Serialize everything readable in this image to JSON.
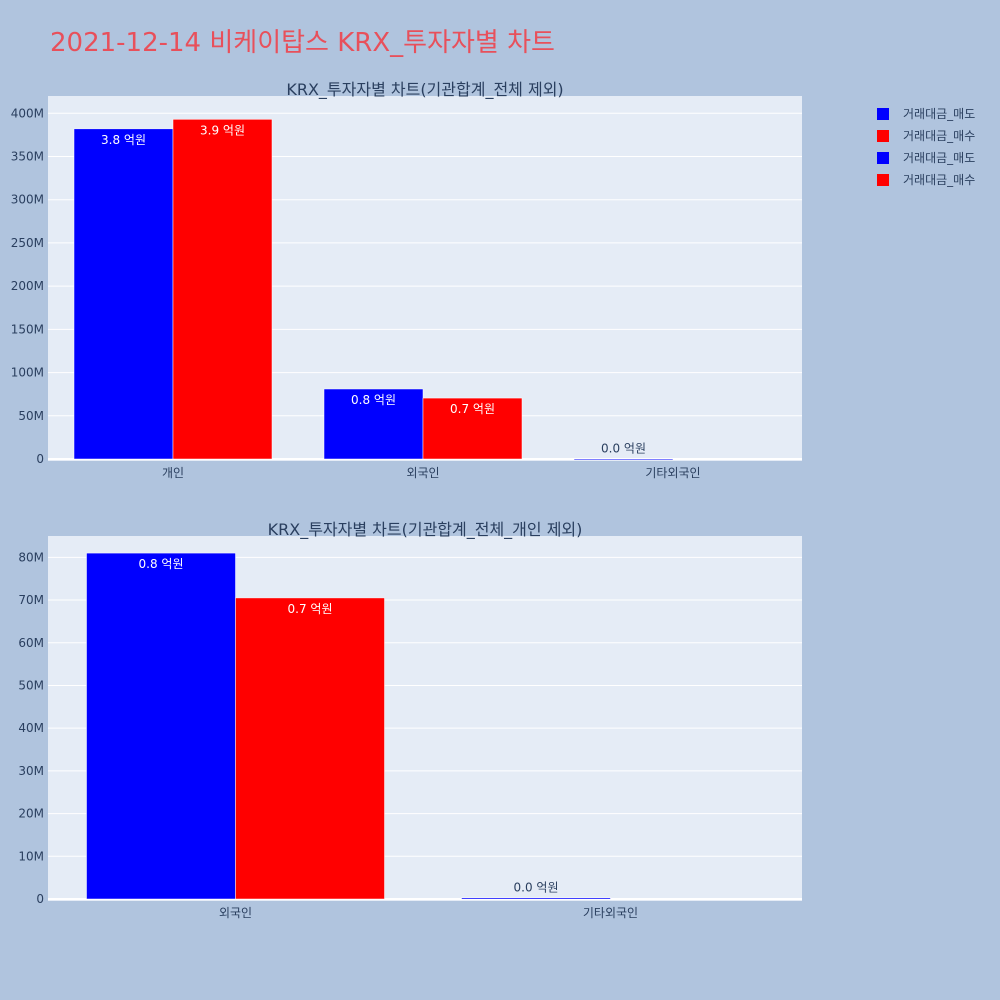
{
  "page_title": "2021-12-14 비케이탑스 KRX_투자자별 차트",
  "colors": {
    "sell": "#0000ff",
    "buy": "#ff0000",
    "plot_bg": "#e5ecf6",
    "page_bg": "#b0c4de"
  },
  "legend": [
    "거래대금_매도",
    "거래대금_매수",
    "거래대금_매도",
    "거래대금_매수"
  ],
  "chart_data": [
    {
      "type": "bar",
      "title": "KRX_투자자별 차트(기관합계_전체 제외)",
      "categories": [
        "개인",
        "외국인",
        "기타외국인"
      ],
      "ylim": [
        0,
        420000000
      ],
      "yticks": [
        0,
        50000000,
        100000000,
        150000000,
        200000000,
        250000000,
        300000000,
        350000000,
        400000000
      ],
      "ytick_labels": [
        "0",
        "50M",
        "100M",
        "150M",
        "200M",
        "250M",
        "300M",
        "350M",
        "400M"
      ],
      "series": [
        {
          "name": "거래대금_매도",
          "color": "#0000ff",
          "values": [
            382000000,
            81000000,
            300000
          ],
          "labels": [
            "3.8 억원",
            "0.8 억원",
            "0.0 억원"
          ]
        },
        {
          "name": "거래대금_매수",
          "color": "#ff0000",
          "values": [
            393000000,
            70500000,
            0
          ],
          "labels": [
            "3.9 억원",
            "0.7 억원",
            ""
          ]
        }
      ]
    },
    {
      "type": "bar",
      "title": "KRX_투자자별 차트(기관합계_전체_개인 제외)",
      "categories": [
        "외국인",
        "기타외국인"
      ],
      "ylim": [
        0,
        85000000
      ],
      "yticks": [
        0,
        10000000,
        20000000,
        30000000,
        40000000,
        50000000,
        60000000,
        70000000,
        80000000
      ],
      "ytick_labels": [
        "0",
        "10M",
        "20M",
        "30M",
        "40M",
        "50M",
        "60M",
        "70M",
        "80M"
      ],
      "series": [
        {
          "name": "거래대금_매도",
          "color": "#0000ff",
          "values": [
            81000000,
            300000
          ],
          "labels": [
            "0.8 억원",
            "0.0 억원"
          ]
        },
        {
          "name": "거래대금_매수",
          "color": "#ff0000",
          "values": [
            70500000,
            0
          ],
          "labels": [
            "0.7 억원",
            ""
          ]
        }
      ]
    }
  ]
}
